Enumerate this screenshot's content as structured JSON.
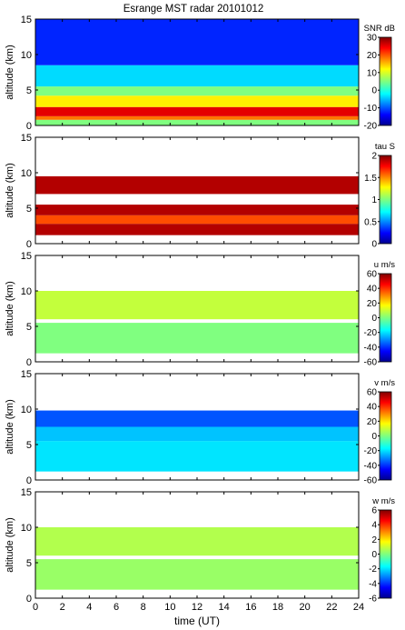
{
  "title": "Esrange MST radar 20101012",
  "xlabel": "time (UT)",
  "chart_data": [
    {
      "type": "heatmap",
      "title": "Esrange MST radar 20101012",
      "xlabel": "",
      "ylabel": "altitude (km)",
      "xlim": [
        0,
        24
      ],
      "ylim": [
        0,
        15
      ],
      "x_ticks": [
        "0",
        "2",
        "4",
        "6",
        "8",
        "10",
        "12",
        "14",
        "16",
        "18",
        "20",
        "22",
        "24"
      ],
      "y_ticks": [
        "0",
        "5",
        "10",
        "15"
      ],
      "colorbar": {
        "label": "SNR dB",
        "range": [
          -20,
          30
        ],
        "ticks": [
          "30",
          "20",
          "10",
          "0",
          "-10",
          "-20"
        ]
      },
      "layers": [
        {
          "altitude": [
            0.0,
            0.8
          ],
          "value": 5
        },
        {
          "altitude": [
            0.8,
            1.3
          ],
          "value": 18
        },
        {
          "altitude": [
            1.3,
            2.6
          ],
          "value": 25
        },
        {
          "altitude": [
            2.6,
            4.2
          ],
          "value": 12
        },
        {
          "altitude": [
            4.2,
            5.5
          ],
          "value": 5
        },
        {
          "altitude": [
            5.5,
            8.5
          ],
          "value": -3
        },
        {
          "altitude": [
            8.5,
            15.0
          ],
          "value": -12
        }
      ]
    },
    {
      "type": "heatmap",
      "xlabel": "",
      "ylabel": "altitude (km)",
      "xlim": [
        0,
        24
      ],
      "ylim": [
        0,
        15
      ],
      "x_ticks": [
        "0",
        "2",
        "4",
        "6",
        "8",
        "10",
        "12",
        "14",
        "16",
        "18",
        "20",
        "22",
        "24"
      ],
      "y_ticks": [
        "0",
        "5",
        "10",
        "15"
      ],
      "colorbar": {
        "label": "tau S",
        "range": [
          0,
          2
        ],
        "ticks": [
          "2",
          "1.5",
          "1",
          "0.5",
          "0"
        ]
      },
      "layers": [
        {
          "altitude": [
            1.2,
            2.8
          ],
          "value": 1.9
        },
        {
          "altitude": [
            2.8,
            4.0
          ],
          "value": 1.6
        },
        {
          "altitude": [
            4.0,
            5.5
          ],
          "value": 1.9
        },
        {
          "altitude": [
            7.0,
            9.5
          ],
          "value": 1.9
        }
      ]
    },
    {
      "type": "heatmap",
      "xlabel": "",
      "ylabel": "altitude (km)",
      "xlim": [
        0,
        24
      ],
      "ylim": [
        0,
        15
      ],
      "x_ticks": [
        "0",
        "2",
        "4",
        "6",
        "8",
        "10",
        "12",
        "14",
        "16",
        "18",
        "20",
        "22",
        "24"
      ],
      "y_ticks": [
        "0",
        "5",
        "10",
        "15"
      ],
      "colorbar": {
        "label": "u m/s",
        "range": [
          -60,
          60
        ],
        "ticks": [
          "60",
          "40",
          "20",
          "0",
          "-20",
          "-40",
          "-60"
        ]
      },
      "layers": [
        {
          "altitude": [
            1.2,
            5.5
          ],
          "value": 0
        },
        {
          "altitude": [
            6.0,
            10.0
          ],
          "value": 8
        }
      ]
    },
    {
      "type": "heatmap",
      "xlabel": "",
      "ylabel": "altitude (km)",
      "xlim": [
        0,
        24
      ],
      "ylim": [
        0,
        15
      ],
      "x_ticks": [
        "0",
        "2",
        "4",
        "6",
        "8",
        "10",
        "12",
        "14",
        "16",
        "18",
        "20",
        "22",
        "24"
      ],
      "y_ticks": [
        "0",
        "5",
        "10",
        "15"
      ],
      "colorbar": {
        "label": "v m/s",
        "range": [
          -60,
          60
        ],
        "ticks": [
          "60",
          "40",
          "20",
          "0",
          "-20",
          "-40",
          "-60"
        ]
      },
      "layers": [
        {
          "altitude": [
            1.2,
            5.5
          ],
          "value": -18
        },
        {
          "altitude": [
            5.5,
            7.5
          ],
          "value": -22
        },
        {
          "altitude": [
            7.5,
            9.8
          ],
          "value": -35
        }
      ]
    },
    {
      "type": "heatmap",
      "xlabel": "time (UT)",
      "ylabel": "altitude (km)",
      "xlim": [
        0,
        24
      ],
      "ylim": [
        0,
        15
      ],
      "x_ticks": [
        "0",
        "2",
        "4",
        "6",
        "8",
        "10",
        "12",
        "14",
        "16",
        "18",
        "20",
        "22",
        "24"
      ],
      "y_ticks": [
        "0",
        "5",
        "10",
        "15"
      ],
      "colorbar": {
        "label": "w m/s",
        "range": [
          -6,
          6
        ],
        "ticks": [
          "6",
          "4",
          "2",
          "0",
          "-2",
          "-4",
          "-6"
        ]
      },
      "layers": [
        {
          "altitude": [
            1.2,
            5.5
          ],
          "value": 0.3
        },
        {
          "altitude": [
            6.0,
            10.0
          ],
          "value": 0.6
        }
      ]
    }
  ]
}
